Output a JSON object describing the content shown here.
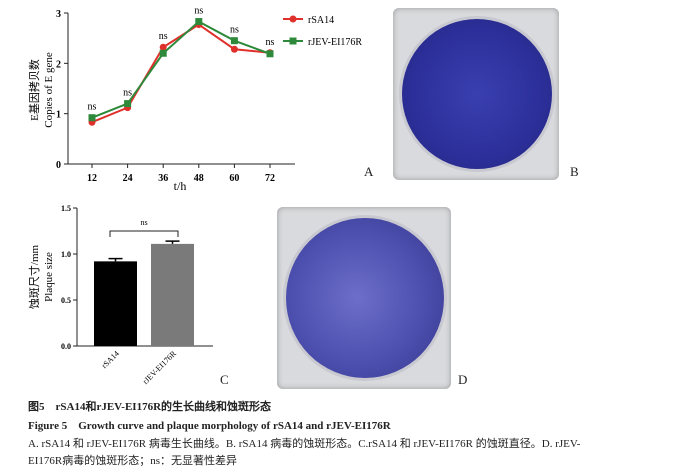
{
  "chart_data": [
    {
      "type": "line",
      "panel": "A",
      "x": [
        12,
        24,
        36,
        48,
        60,
        72
      ],
      "xlabel": "t/h",
      "ylabel": [
        "E基因拷贝数",
        "Copies of E gene"
      ],
      "ylim": [
        0,
        3
      ],
      "yticks": [
        0,
        1,
        2,
        3
      ],
      "series": [
        {
          "name": "rSA14",
          "color": "#e0302c",
          "marker": "circle",
          "values": [
            0.83,
            1.12,
            2.32,
            2.77,
            2.28,
            2.21
          ]
        },
        {
          "name": "rJEV-EI176R",
          "color": "#2e8a3a",
          "marker": "square",
          "values": [
            0.92,
            1.2,
            2.2,
            2.83,
            2.45,
            2.19
          ]
        }
      ],
      "annotations": [
        "ns",
        "ns",
        "ns",
        "ns",
        "ns",
        "ns"
      ],
      "legend": "top-right",
      "grid": false
    },
    {
      "type": "bar",
      "panel": "C",
      "categories": [
        "rSA14",
        "rJEV-EI176R"
      ],
      "values": [
        0.92,
        1.11
      ],
      "errors": [
        0.03,
        0.03
      ],
      "colors": [
        "#000000",
        "#7a7a7a"
      ],
      "ylabel": [
        "蚀斑尺寸/mm",
        "Plaque size"
      ],
      "ylim": [
        0,
        1.5
      ],
      "yticks": [
        "0.0",
        "0.5",
        "1.0",
        "1.5"
      ],
      "annotation": "ns",
      "grid": false
    }
  ],
  "panels": {
    "a": "A",
    "b": "B",
    "c": "C",
    "d": "D"
  },
  "caption": {
    "cn_title": "图5　rSA14和rJEV-EI176R的生长曲线和蚀斑形态",
    "en_title": "Figure 5　Growth curve and plaque morphology of rSA14 and rJEV-EI176R",
    "line1": "A. rSA14 和 rJEV-EI176R 病毒生长曲线。B. rSA14 病毒的蚀斑形态。C.rSA14 和 rJEV-EI176R 的蚀斑直径。D. rJEV-",
    "line2": "EI176R病毒的蚀斑形态；ns：无显著性差异"
  }
}
